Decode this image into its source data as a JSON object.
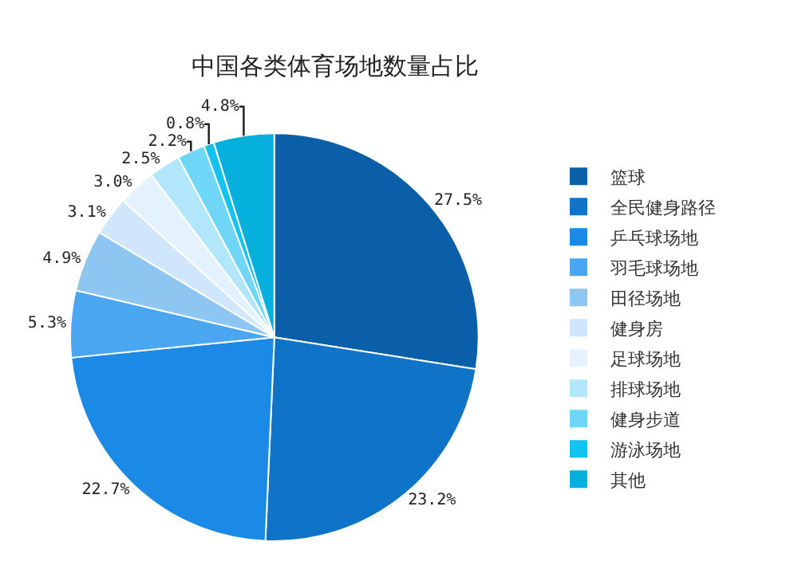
{
  "chart_data": {
    "type": "pie",
    "title": "中国各类体育场地数量占比",
    "categories": [
      "篮球",
      "全民健身路径",
      "乒乓球场地",
      "羽毛球场地",
      "田径场地",
      "健身房",
      "足球场地",
      "排球场地",
      "健身步道",
      "游泳场地",
      "其他"
    ],
    "values": [
      27.5,
      23.2,
      22.7,
      5.3,
      4.9,
      3.1,
      3.0,
      2.5,
      2.2,
      0.8,
      4.8
    ],
    "value_labels": [
      "27.5%",
      "23.2%",
      "22.7%",
      "5.3%",
      "4.9%",
      "3.1%",
      "3.0%",
      "2.5%",
      "2.2%",
      "0.8%",
      "4.8%"
    ],
    "colors": [
      "#0b5ea8",
      "#0f74c8",
      "#1a8ae6",
      "#4aa6f0",
      "#8ec6f2",
      "#cfe6fb",
      "#e4f2fd",
      "#b2e6fa",
      "#6fd6f7",
      "#12c3ef",
      "#06b0dc"
    ],
    "legend": "right"
  }
}
